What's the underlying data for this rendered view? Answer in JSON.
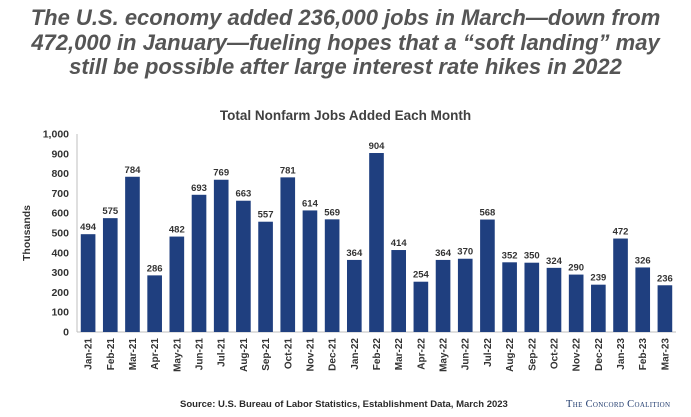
{
  "headline": {
    "lines": [
      "The U.S. economy added 236,000 jobs in March—down from",
      "472,000 in January—fueling hopes that a “soft landing” may",
      "still be possible after large interest rate hikes in 2022"
    ]
  },
  "chart_data": {
    "type": "bar",
    "title": "Total Nonfarm Jobs Added Each Month",
    "xlabel": "",
    "ylabel": "Thousands",
    "ylim": [
      0,
      1000
    ],
    "yticks": [
      "0",
      "100",
      "200",
      "300",
      "400",
      "500",
      "600",
      "700",
      "800",
      "900",
      "1,000"
    ],
    "grid": false,
    "bar_color": "#1f3f7f",
    "categories": [
      "Jan-21",
      "Feb-21",
      "Mar-21",
      "Apr-21",
      "May-21",
      "Jun-21",
      "Jul-21",
      "Aug-21",
      "Sep-21",
      "Oct-21",
      "Nov-21",
      "Dec-21",
      "Jan-22",
      "Feb-22",
      "Mar-22",
      "Apr-22",
      "May-22",
      "Jun-22",
      "Jul-22",
      "Aug-22",
      "Sep-22",
      "Oct-22",
      "Nov-22",
      "Dec-22",
      "Jan-23",
      "Feb-23",
      "Mar-23"
    ],
    "values": [
      494,
      575,
      784,
      286,
      482,
      693,
      769,
      663,
      557,
      781,
      614,
      569,
      364,
      904,
      414,
      254,
      364,
      370,
      568,
      352,
      350,
      324,
      290,
      239,
      472,
      326,
      236
    ]
  },
  "footer": {
    "source": "Source: U.S. Bureau of Labor Statistics, Establishment Data, March 2023",
    "brand": "The Concord Coalition"
  }
}
